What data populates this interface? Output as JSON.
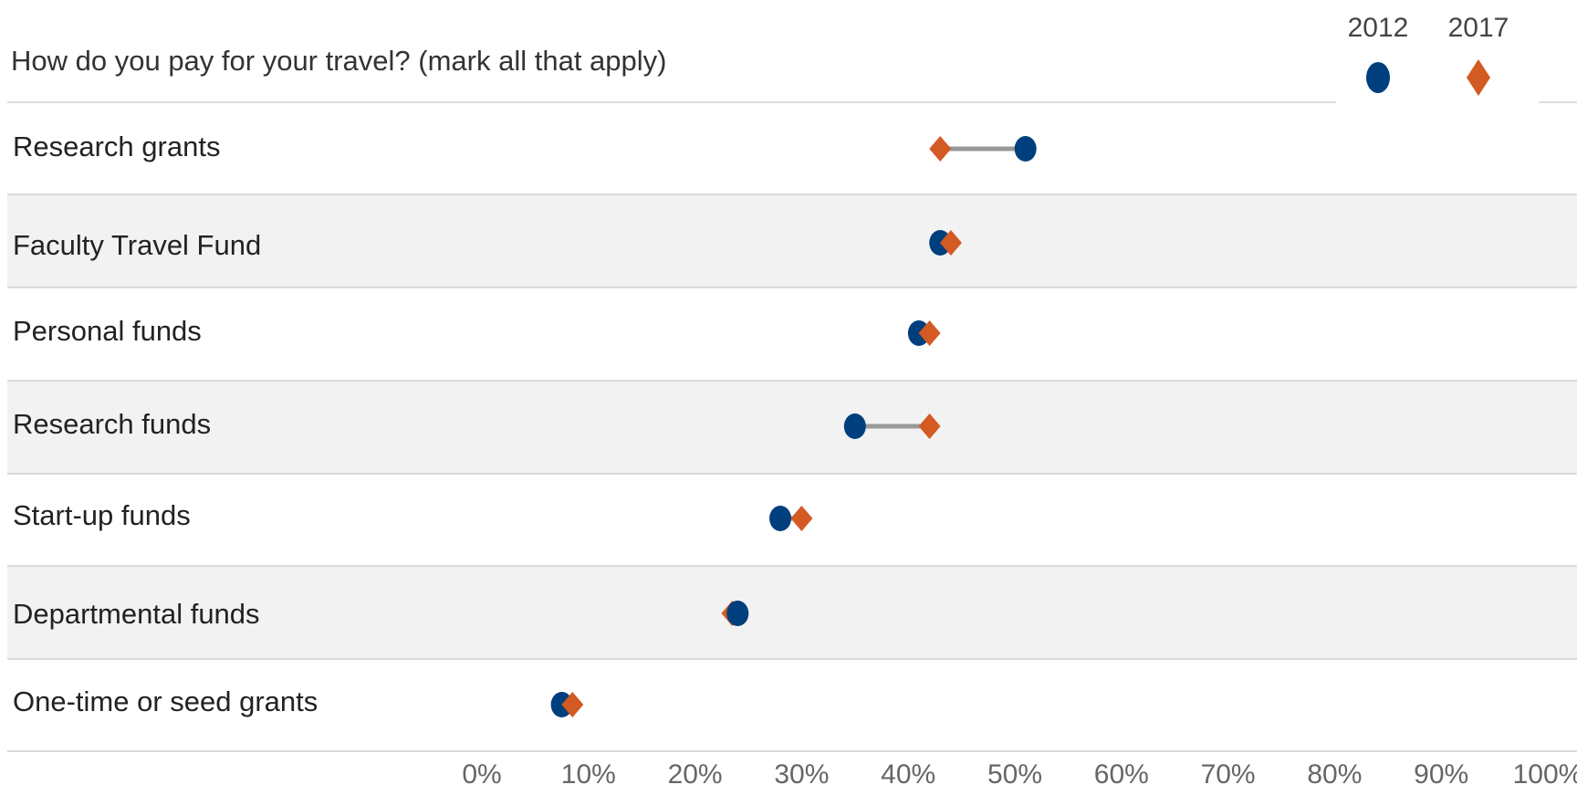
{
  "chart_data": {
    "type": "dot-plot",
    "title": "How do you pay for your travel? (mark all that apply)",
    "legend_position": "top-right",
    "series": [
      {
        "name": "2012",
        "marker": "circle",
        "color": "#003f7d",
        "values": [
          51,
          43,
          41,
          35,
          28,
          24,
          7.5
        ]
      },
      {
        "name": "2017",
        "marker": "diamond",
        "color": "#d35a22",
        "values": [
          43,
          44,
          42,
          42,
          30,
          23.5,
          8.5
        ]
      }
    ],
    "categories": [
      "Research grants",
      "Faculty Travel Fund",
      "Personal funds",
      "Research funds",
      "Start-up funds",
      "Departmental funds",
      "One-time or seed grants"
    ],
    "x_ticks": [
      "0%",
      "10%",
      "20%",
      "30%",
      "40%",
      "50%",
      "60%",
      "70%",
      "80%",
      "90%",
      "100%"
    ],
    "xlim": [
      0,
      100
    ],
    "connector_color": "#999999",
    "row_band_color": "#f2f2f2",
    "divider_color": "#d0d0d0"
  }
}
